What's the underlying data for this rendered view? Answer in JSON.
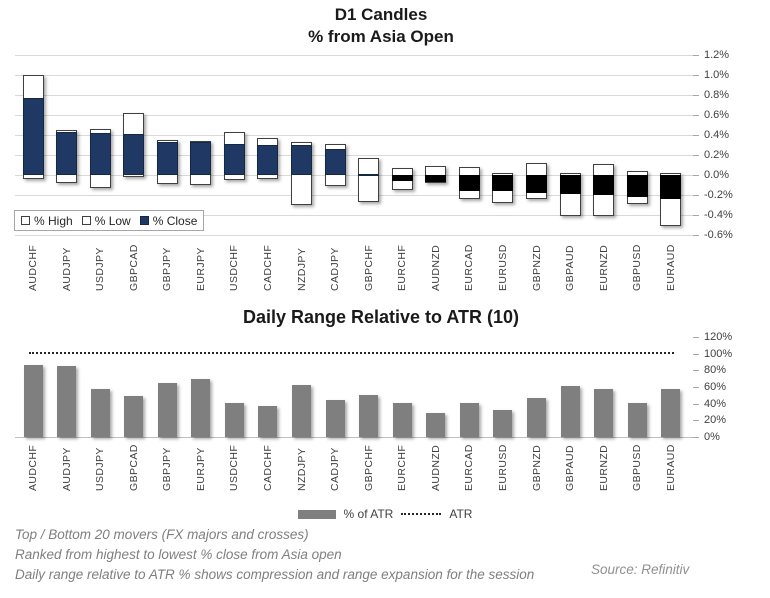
{
  "top_chart": {
    "title_lines": [
      "D1 Candles",
      "% from Asia Open"
    ],
    "legend": [
      {
        "label": "% High",
        "swatch": "white-outline-square"
      },
      {
        "label": "% Low",
        "swatch": "white-outline-square"
      },
      {
        "label": "% Close",
        "swatch": "navy-filled-square"
      }
    ],
    "y_axis_labels": [
      "1.2%",
      "1.0%",
      "0.8%",
      "0.6%",
      "0.4%",
      "0.2%",
      "0.0%",
      "-0.2%",
      "-0.4%",
      "-0.6%"
    ]
  },
  "bottom_chart": {
    "title": "Daily Range Relative to ATR (10)",
    "legend": [
      {
        "label": "% of ATR",
        "swatch": "gray-bar"
      },
      {
        "label": "ATR",
        "swatch": "dotted-line"
      }
    ],
    "y_axis_labels": [
      "120%",
      "100%",
      "80%",
      "60%",
      "40%",
      "20%",
      "0%"
    ]
  },
  "footer": {
    "lines": [
      "Top / Bottom 20 movers (FX majors and crosses)",
      "Ranked from highest to lowest % close from Asia open",
      "Daily range relative to ATR % shows compression and range expansion for the session"
    ],
    "source": "Source: Refinitiv"
  },
  "colors": {
    "close_positive": "#1f3864",
    "close_negative": "#000000",
    "range_fill": "#ffffff",
    "range_border": "#404040",
    "atr_bar": "#7f7f7f",
    "gridline": "#d9d9d9",
    "axis_text": "#404040",
    "title_text": "#1a1a1a",
    "footer_text": "#7f7f7f"
  },
  "chart_data": [
    {
      "type": "bar",
      "subtype": "open-high-low-close-from-zero-candles",
      "title": "D1 Candles % from Asia Open",
      "categories": [
        "AUDCHF",
        "AUDJPY",
        "USDJPY",
        "GBPCAD",
        "GBPJPY",
        "EURJPY",
        "USDCHF",
        "CADCHF",
        "NZDJPY",
        "CADJPY",
        "GBPCHF",
        "EURCHF",
        "AUDNZD",
        "EURCAD",
        "EURUSD",
        "GBPNZD",
        "GBPAUD",
        "EURNZD",
        "GBPUSD",
        "EURAUD"
      ],
      "series": [
        {
          "name": "% High",
          "values": [
            1.0,
            0.45,
            0.46,
            0.62,
            0.35,
            0.34,
            0.43,
            0.37,
            0.33,
            0.31,
            0.17,
            0.07,
            0.09,
            0.08,
            0.02,
            0.12,
            0.02,
            0.11,
            0.04,
            0.02
          ]
        },
        {
          "name": "% Low",
          "values": [
            -0.04,
            -0.08,
            -0.13,
            -0.02,
            -0.09,
            -0.1,
            -0.05,
            -0.04,
            -0.3,
            -0.11,
            -0.27,
            -0.15,
            -0.08,
            -0.24,
            -0.28,
            -0.24,
            -0.41,
            -0.41,
            -0.29,
            -0.51
          ]
        },
        {
          "name": "% Close",
          "values": [
            0.77,
            0.43,
            0.42,
            0.41,
            0.33,
            0.33,
            0.31,
            0.3,
            0.3,
            0.26,
            0.01,
            -0.06,
            -0.07,
            -0.16,
            -0.16,
            -0.18,
            -0.19,
            -0.2,
            -0.22,
            -0.24
          ]
        }
      ],
      "ylim": [
        -0.6,
        1.2
      ],
      "y_step": 0.2,
      "y_unit": "%",
      "grid": true,
      "y_axis_position": "right",
      "legend_position": "inside-bottom-left"
    },
    {
      "type": "bar",
      "title": "Daily Range Relative to ATR (10)",
      "categories": [
        "AUDCHF",
        "AUDJPY",
        "USDJPY",
        "GBPCAD",
        "GBPJPY",
        "EURJPY",
        "USDCHF",
        "CADCHF",
        "NZDJPY",
        "CADJPY",
        "GBPCHF",
        "EURCHF",
        "AUDNZD",
        "EURCAD",
        "EURUSD",
        "GBPNZD",
        "GBPAUD",
        "EURNZD",
        "GBPUSD",
        "EURAUD"
      ],
      "series": [
        {
          "name": "% of ATR",
          "values": [
            86,
            85,
            58,
            49,
            65,
            70,
            41,
            37,
            62,
            44,
            51,
            41,
            29,
            41,
            33,
            47,
            61,
            58,
            41,
            58
          ]
        }
      ],
      "reference_line": {
        "name": "ATR",
        "value": 100,
        "style": "dotted"
      },
      "ylim": [
        0,
        120
      ],
      "y_step": 20,
      "y_unit": "%",
      "grid": false,
      "y_axis_position": "right",
      "legend_position": "below"
    }
  ]
}
